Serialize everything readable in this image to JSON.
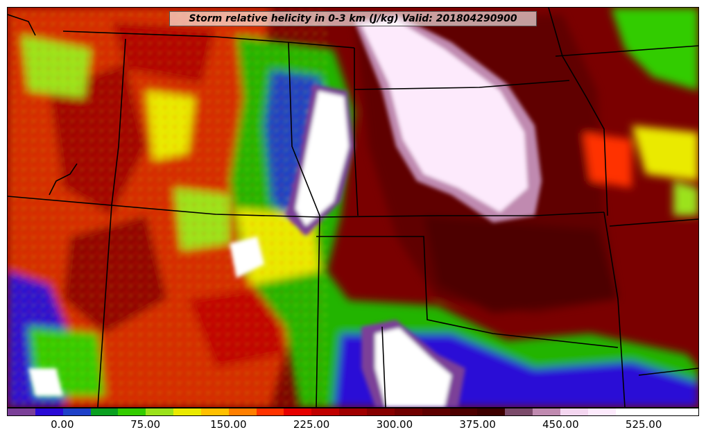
{
  "title": "Storm relative helicity in 0-3 km (J/kg) Valid: 201804290900",
  "colorbar": {
    "min": -50,
    "max": 575,
    "step": 25,
    "colors": [
      "#7b3f98",
      "#2a0ad6",
      "#1e40c8",
      "#0aa020",
      "#33cc00",
      "#9be21a",
      "#eaea00",
      "#ffc000",
      "#ff7f00",
      "#ff3300",
      "#e60000",
      "#c00000",
      "#a00000",
      "#860000",
      "#700000",
      "#5e0000",
      "#4d0000",
      "#3d0000",
      "#7b4a6a",
      "#c08ab0",
      "#f4d6f0",
      "#fdeafc",
      "#ffffff",
      "#ffffff",
      "#ffffff"
    ],
    "ticks": [
      {
        "value": 0,
        "label": "0.00"
      },
      {
        "value": 75,
        "label": "75.00"
      },
      {
        "value": 150,
        "label": "150.00"
      },
      {
        "value": 225,
        "label": "225.00"
      },
      {
        "value": 300,
        "label": "300.00"
      },
      {
        "value": 375,
        "label": "375.00"
      },
      {
        "value": 450,
        "label": "450.00"
      },
      {
        "value": 525,
        "label": "525.00"
      }
    ]
  }
}
